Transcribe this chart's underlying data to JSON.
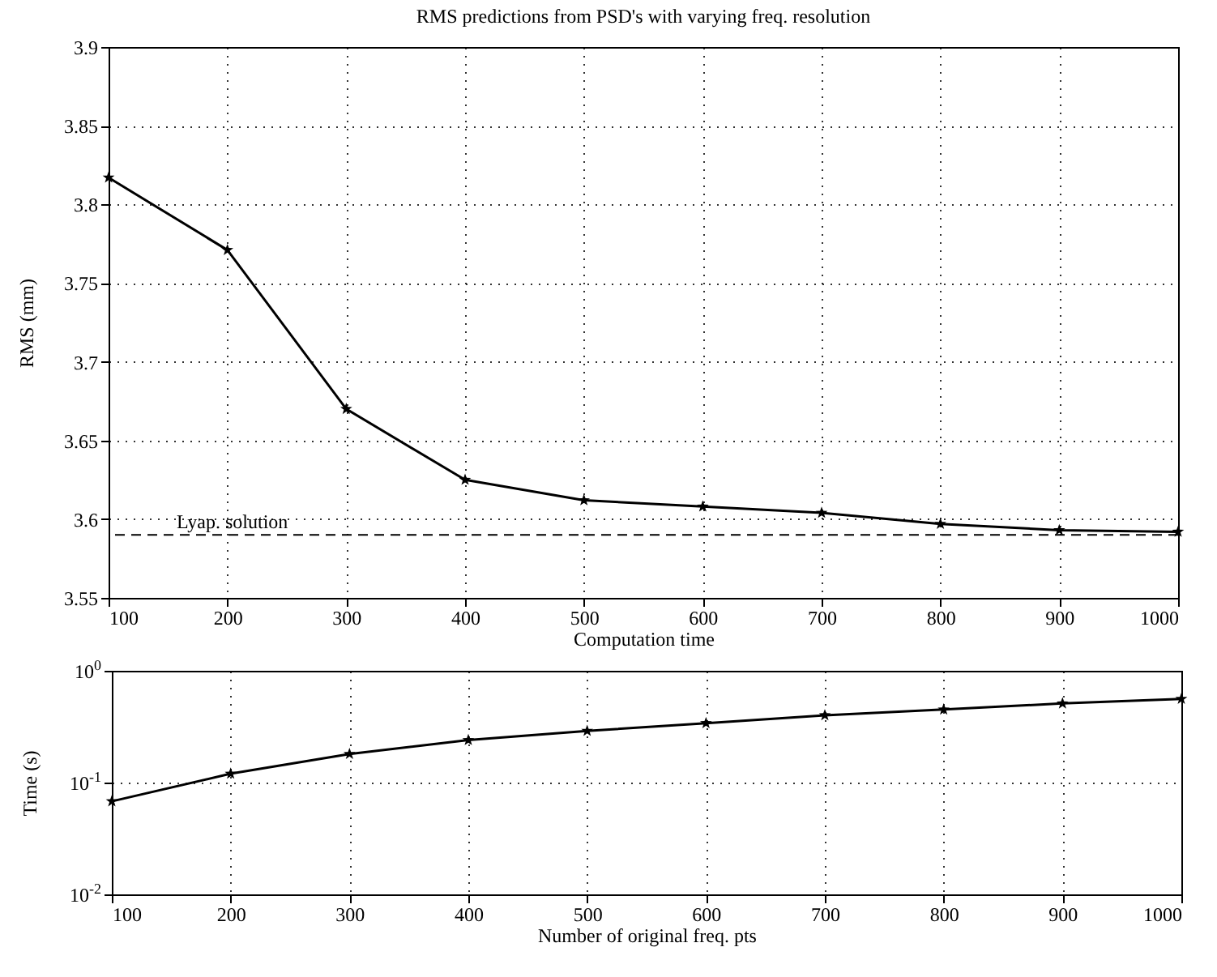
{
  "chart_data": [
    {
      "type": "line",
      "title": "RMS predictions from PSD's with varying freq. resolution",
      "xlabel": "Computation time",
      "ylabel": "RMS (mm)",
      "x": [
        100,
        200,
        300,
        400,
        500,
        600,
        700,
        800,
        900,
        1000
      ],
      "series": [
        {
          "color": "#000000",
          "values": [
            3.817,
            3.771,
            3.67,
            3.625,
            3.612,
            3.608,
            3.604,
            3.597,
            3.593,
            3.592
          ]
        }
      ],
      "xlim": [
        100,
        1000
      ],
      "xticks": [
        100,
        200,
        300,
        400,
        500,
        600,
        700,
        800,
        900,
        1000
      ],
      "ylim": [
        3.55,
        3.9
      ],
      "yticks": [
        3.55,
        3.6,
        3.65,
        3.7,
        3.75,
        3.8,
        3.85,
        3.9
      ],
      "grid": true,
      "marker": "star",
      "line_style": "solid",
      "ref_lines": [
        {
          "axis": "y",
          "value": 3.59,
          "label": "Lyap. solution",
          "line_style": "dashed",
          "color": "#000000"
        }
      ]
    },
    {
      "type": "line",
      "xlabel": "Number of original freq. pts",
      "ylabel": "Time (s)",
      "x": [
        100,
        200,
        300,
        400,
        500,
        600,
        700,
        800,
        900,
        1000
      ],
      "series": [
        {
          "color": "#000000",
          "values": [
            0.068,
            0.12,
            0.18,
            0.24,
            0.29,
            0.34,
            0.4,
            0.45,
            0.51,
            0.56
          ]
        }
      ],
      "xlim": [
        100,
        1000
      ],
      "xticks": [
        100,
        200,
        300,
        400,
        500,
        600,
        700,
        800,
        900,
        1000
      ],
      "ylim": [
        0.01,
        1
      ],
      "yticks": [
        {
          "value": 0.01,
          "label": "10$^{-2}$"
        },
        {
          "value": 0.1,
          "label": "10$^{-1}$"
        },
        {
          "value": 1,
          "label": "10$^{0}$"
        }
      ],
      "log": "y",
      "grid": true,
      "marker": "star",
      "line_style": "solid"
    }
  ]
}
